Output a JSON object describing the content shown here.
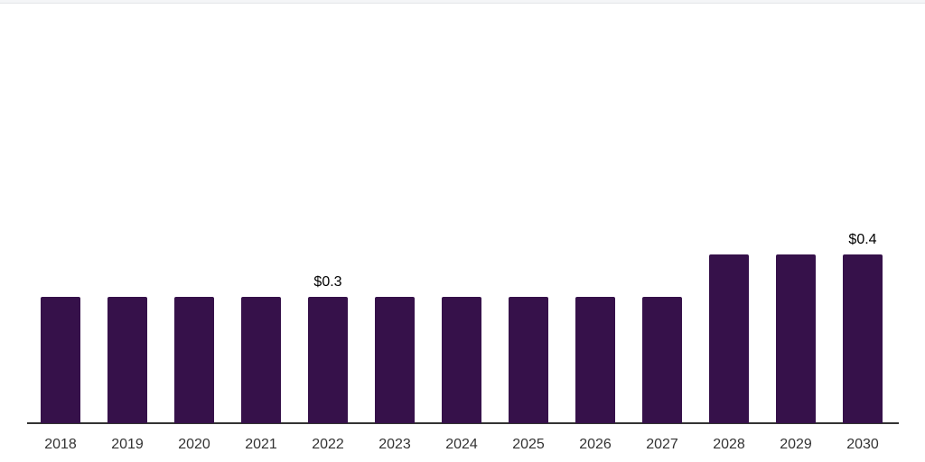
{
  "page": {
    "background": "#ffffff",
    "top_strip_color": "#f4f5f7",
    "top_strip_border": "#e3e5e8"
  },
  "chart_data": {
    "type": "bar",
    "categories": [
      "2018",
      "2019",
      "2020",
      "2021",
      "2022",
      "2023",
      "2024",
      "2025",
      "2026",
      "2027",
      "2028",
      "2029",
      "2030"
    ],
    "values": [
      0.3,
      0.3,
      0.3,
      0.3,
      0.3,
      0.3,
      0.3,
      0.3,
      0.3,
      0.3,
      0.4,
      0.4,
      0.4
    ],
    "data_labels": {
      "2022": "$0.3",
      "2030": "$0.4"
    },
    "title": "",
    "xlabel": "",
    "ylabel": "",
    "ylim": [
      0,
      0.4
    ],
    "grid": false,
    "legend": false,
    "bar_color": "#36114a",
    "axis_color": "#333333",
    "tick_color": "#333333",
    "data_label_color": "#000000"
  }
}
